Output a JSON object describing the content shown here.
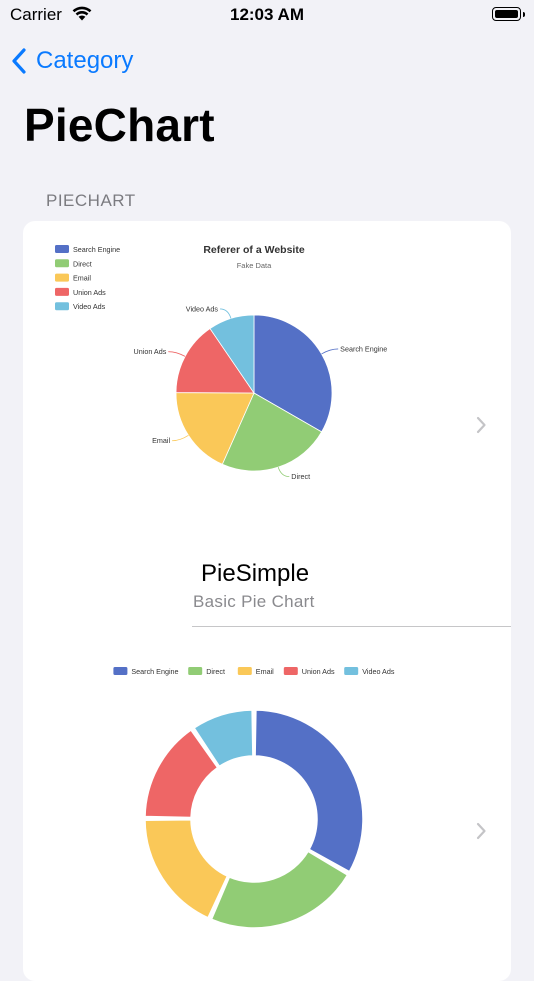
{
  "status_bar": {
    "carrier": "Carrier",
    "time": "12:03 AM"
  },
  "nav": {
    "back_label": "Category"
  },
  "page": {
    "title": "PieChart"
  },
  "section": {
    "header": "PIECHART"
  },
  "rows": [
    {
      "title": "PieSimple",
      "subtitle": "Basic Pie Chart"
    },
    {
      "title": "",
      "subtitle": ""
    }
  ],
  "colors": {
    "accent": "#0a7aff",
    "background": "#f2f2f7"
  },
  "chart_data": [
    {
      "type": "pie",
      "title": "Referer of a Website",
      "subtitle": "Fake Data",
      "legend_position": "top-left",
      "categories": [
        "Search Engine",
        "Direct",
        "Email",
        "Union Ads",
        "Video Ads"
      ],
      "values": [
        1048,
        735,
        580,
        484,
        300
      ],
      "colors": [
        "#5470c6",
        "#91cc75",
        "#fac858",
        "#ee6666",
        "#73c0de"
      ]
    },
    {
      "type": "pie",
      "variant": "doughnut",
      "legend_position": "top",
      "categories": [
        "Search Engine",
        "Direct",
        "Email",
        "Union Ads",
        "Video Ads"
      ],
      "values": [
        1048,
        735,
        580,
        484,
        300
      ],
      "colors": [
        "#5470c6",
        "#91cc75",
        "#fac858",
        "#ee6666",
        "#73c0de"
      ]
    }
  ]
}
